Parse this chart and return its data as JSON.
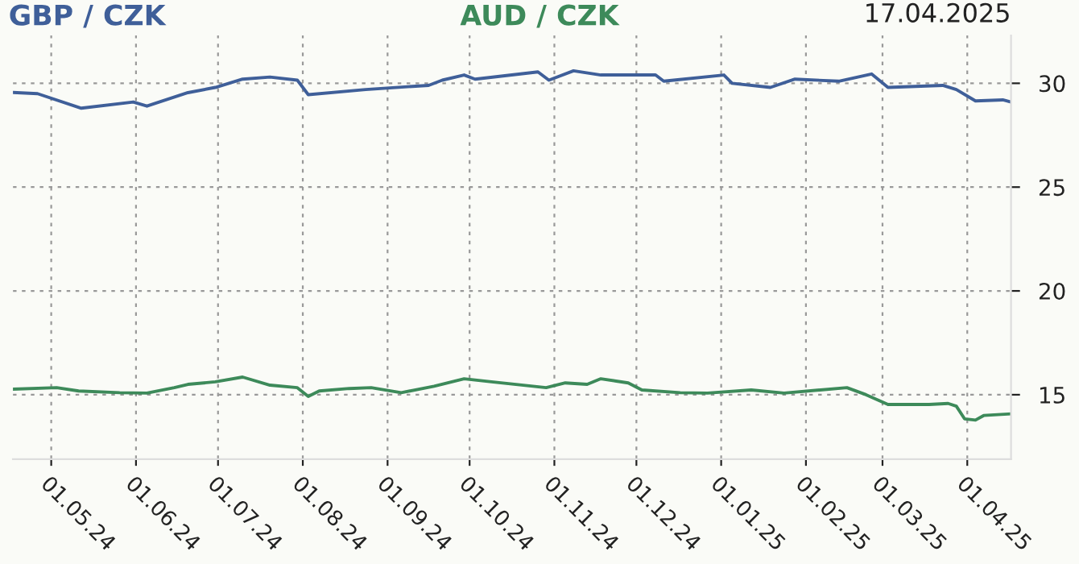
{
  "chart_data": {
    "type": "line",
    "title": "17.04.2025",
    "series": [
      {
        "name": "GBP / CZK",
        "color": "#3f5f99",
        "x": [
          "2024-04-17",
          "2024-04-26",
          "2024-05-12",
          "2024-05-31",
          "2024-06-05",
          "2024-06-20",
          "2024-06-30",
          "2024-07-10",
          "2024-07-20",
          "2024-07-30",
          "2024-08-03",
          "2024-08-24",
          "2024-09-16",
          "2024-09-21",
          "2024-09-29",
          "2024-10-03",
          "2024-10-26",
          "2024-10-30",
          "2024-11-08",
          "2024-11-18",
          "2024-12-08",
          "2024-12-11",
          "2025-01-02",
          "2025-01-05",
          "2025-01-19",
          "2025-01-28",
          "2025-02-13",
          "2025-02-25",
          "2025-03-03",
          "2025-03-23",
          "2025-03-28",
          "2025-04-04",
          "2025-04-14",
          "2025-04-17"
        ],
        "values": [
          29.56,
          29.5,
          28.8,
          29.1,
          28.9,
          29.55,
          29.8,
          30.2,
          30.3,
          30.15,
          29.45,
          29.7,
          29.9,
          30.15,
          30.4,
          30.2,
          30.55,
          30.15,
          30.6,
          30.4,
          30.4,
          30.1,
          30.4,
          30.0,
          29.8,
          30.2,
          30.1,
          30.45,
          29.8,
          29.9,
          29.7,
          29.15,
          29.2,
          29.1
        ]
      },
      {
        "name": "AUD / CZK",
        "color": "#3d8a5a",
        "x": [
          "2024-04-17",
          "2024-05-03",
          "2024-05-11",
          "2024-05-26",
          "2024-06-05",
          "2024-06-15",
          "2024-06-20",
          "2024-06-30",
          "2024-07-10",
          "2024-07-20",
          "2024-07-30",
          "2024-08-03",
          "2024-08-07",
          "2024-08-18",
          "2024-08-26",
          "2024-09-06",
          "2024-09-18",
          "2024-09-29",
          "2024-10-09",
          "2024-10-29",
          "2024-11-05",
          "2024-11-13",
          "2024-11-18",
          "2024-11-28",
          "2024-12-03",
          "2024-12-17",
          "2024-12-27",
          "2025-01-12",
          "2025-01-24",
          "2025-02-16",
          "2025-02-23",
          "2025-03-03",
          "2025-03-18",
          "2025-03-25",
          "2025-03-28",
          "2025-03-31",
          "2025-04-04",
          "2025-04-07",
          "2025-04-17"
        ],
        "values": [
          15.27,
          15.34,
          15.18,
          15.1,
          15.08,
          15.34,
          15.5,
          15.62,
          15.85,
          15.46,
          15.34,
          14.92,
          15.18,
          15.3,
          15.34,
          15.1,
          15.41,
          15.77,
          15.62,
          15.34,
          15.57,
          15.5,
          15.77,
          15.57,
          15.23,
          15.1,
          15.08,
          15.23,
          15.08,
          15.34,
          15.0,
          14.53,
          14.53,
          14.58,
          14.45,
          13.84,
          13.78,
          14.0,
          14.08
        ]
      }
    ],
    "xlim": [
      "2024-04-17",
      "2025-04-17"
    ],
    "xticks": [
      {
        "value": "2024-05-01",
        "label": "01.05.24"
      },
      {
        "value": "2024-06-01",
        "label": "01.06.24"
      },
      {
        "value": "2024-07-01",
        "label": "01.07.24"
      },
      {
        "value": "2024-08-01",
        "label": "01.08.24"
      },
      {
        "value": "2024-09-01",
        "label": "01.09.24"
      },
      {
        "value": "2024-10-01",
        "label": "01.10.24"
      },
      {
        "value": "2024-11-01",
        "label": "01.11.24"
      },
      {
        "value": "2024-12-01",
        "label": "01.12.24"
      },
      {
        "value": "2025-01-01",
        "label": "01.01.25"
      },
      {
        "value": "2025-02-01",
        "label": "01.02.25"
      },
      {
        "value": "2025-03-01",
        "label": "01.03.25"
      },
      {
        "value": "2025-04-01",
        "label": "01.04.25"
      }
    ],
    "ylim": [
      11.9,
      32.3
    ],
    "yticks": [
      15,
      20,
      25,
      30
    ],
    "grid": true,
    "legend": "top",
    "line_style": "solid"
  }
}
